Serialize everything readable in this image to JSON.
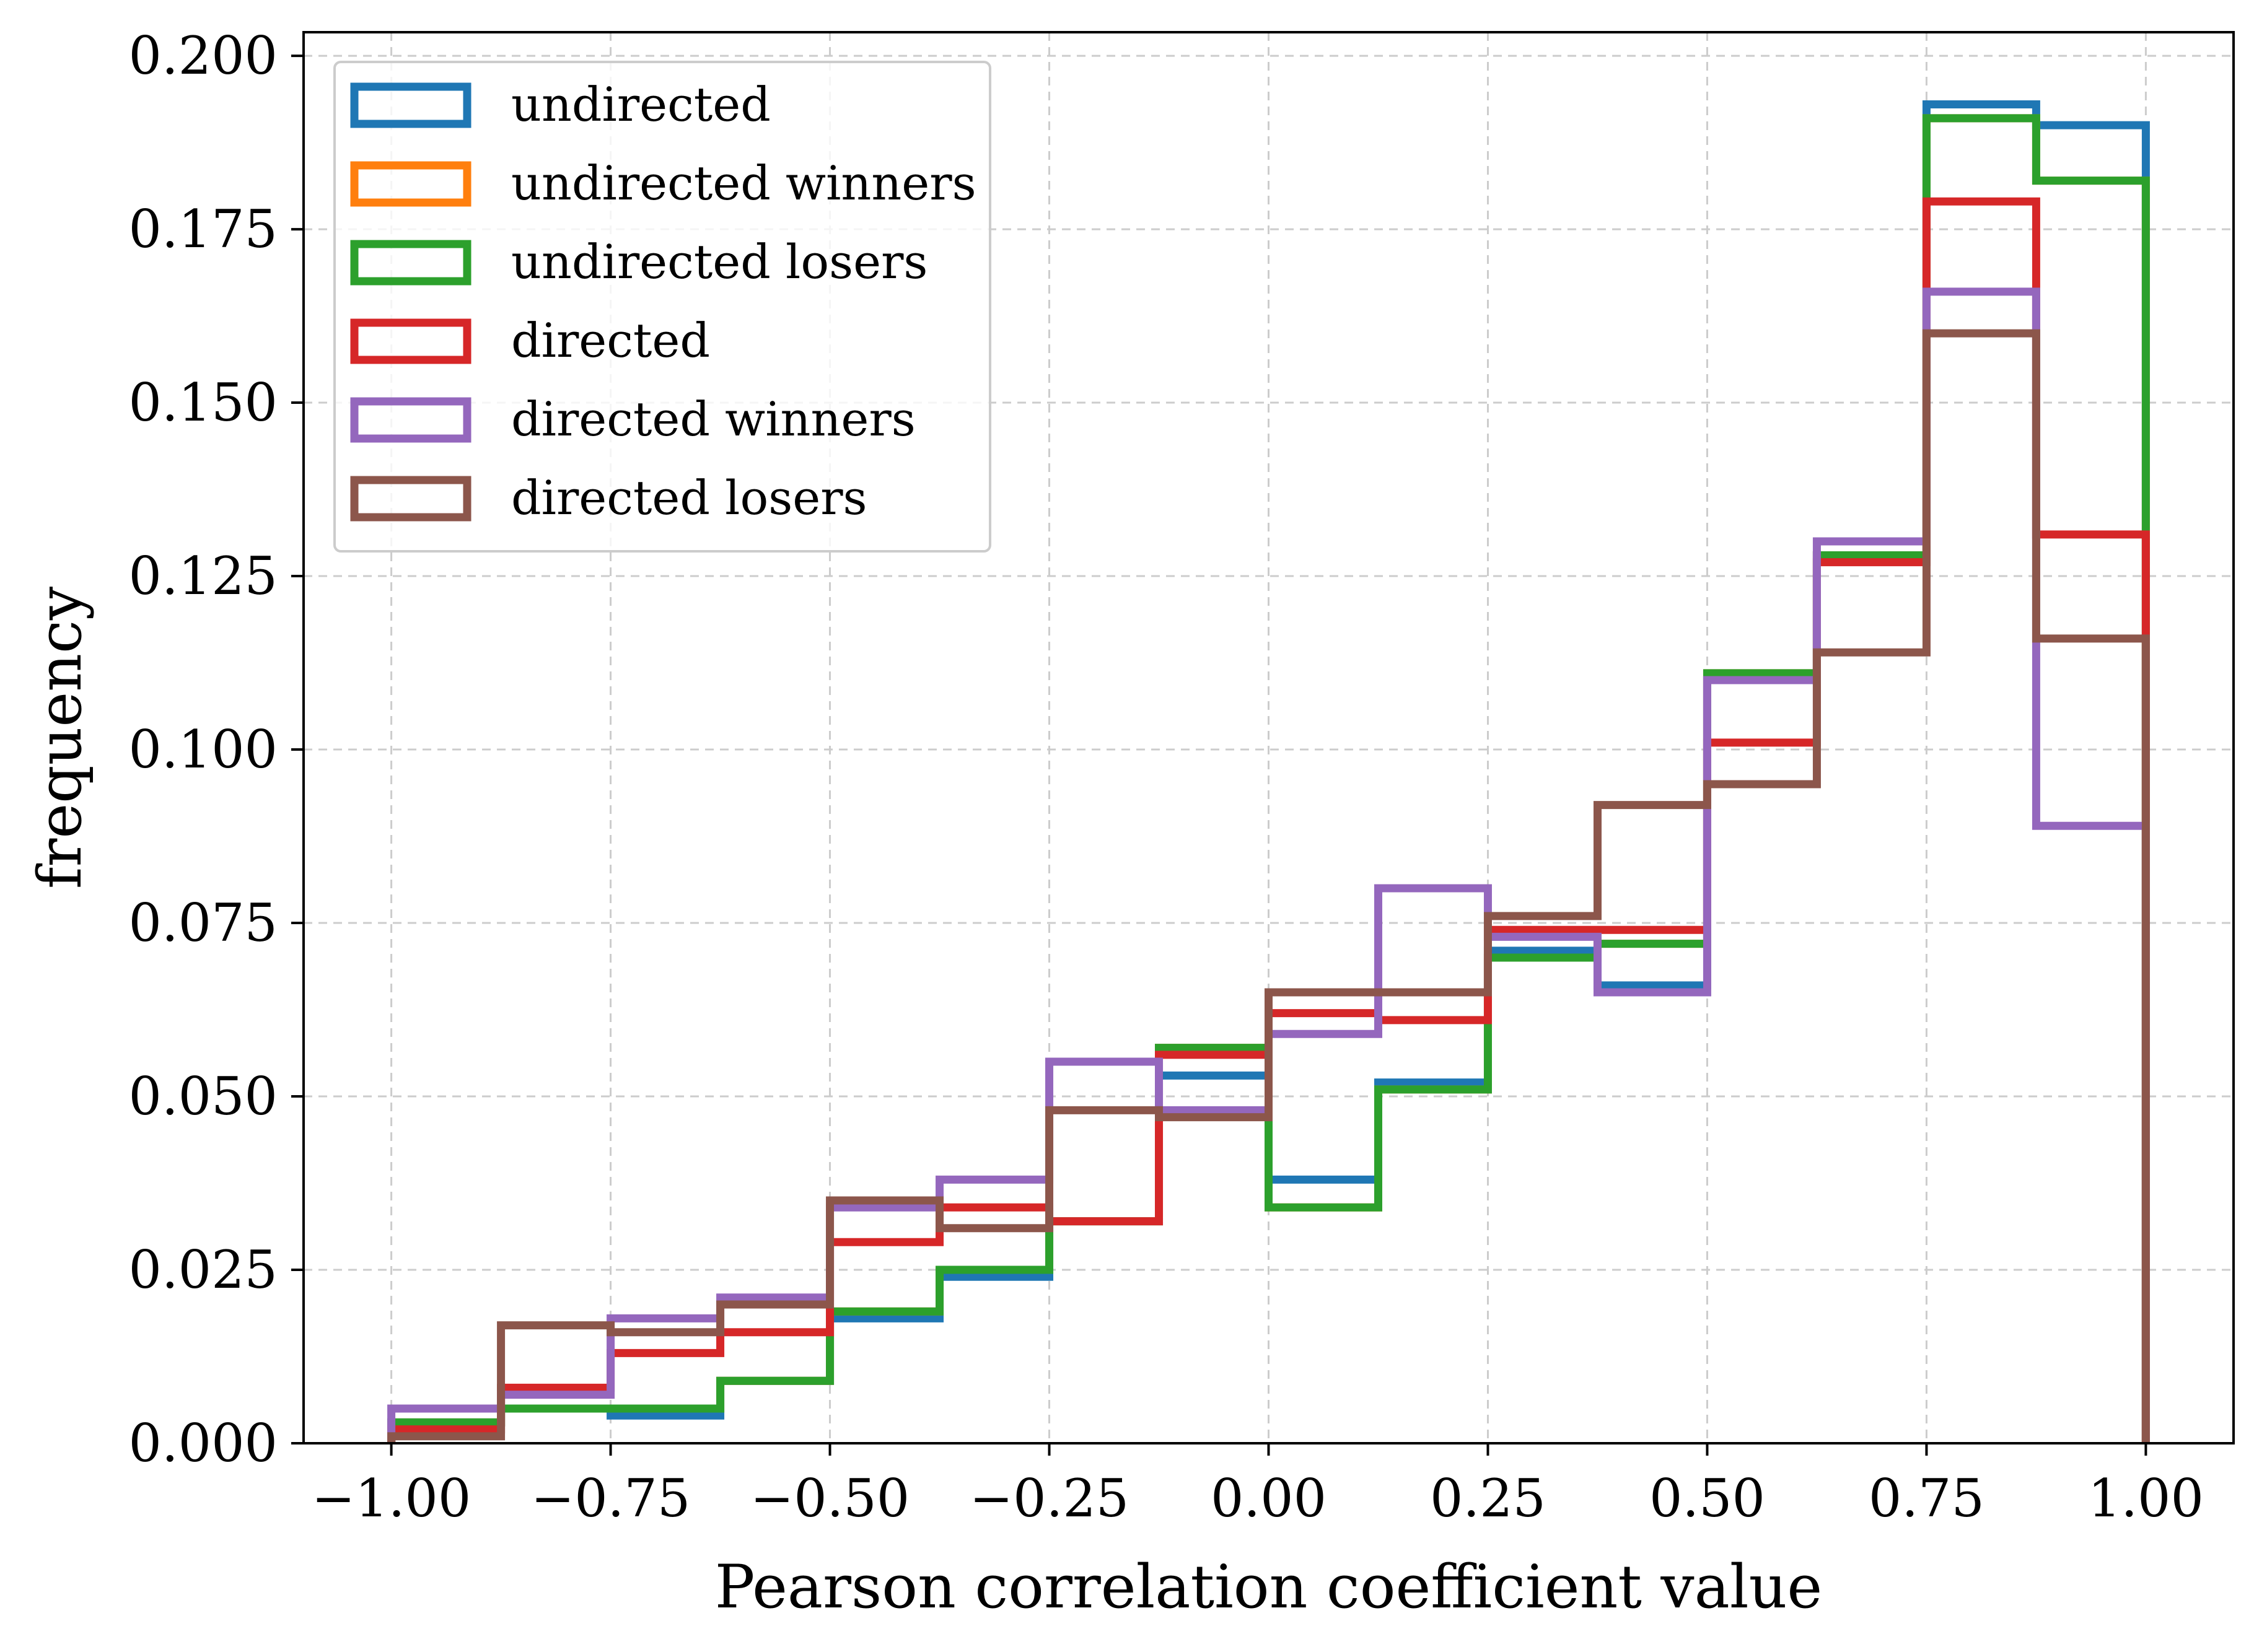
{
  "chart_data": {
    "type": "histogram",
    "title": "",
    "xlabel": "Pearson correlation coefficient value",
    "ylabel": "frequency",
    "xlim": [
      -1.1,
      1.1
    ],
    "ylim": [
      0,
      0.2034
    ],
    "grid": true,
    "legend_position": "upper-left",
    "xticks": [
      -1.0,
      -0.75,
      -0.5,
      -0.25,
      0.0,
      0.25,
      0.5,
      0.75,
      1.0
    ],
    "xtick_labels": [
      "−1.00",
      "−0.75",
      "−0.50",
      "−0.25",
      "0.00",
      "0.25",
      "0.50",
      "0.75",
      "1.00"
    ],
    "yticks": [
      0.0,
      0.025,
      0.05,
      0.075,
      0.1,
      0.125,
      0.15,
      0.175,
      0.2
    ],
    "ytick_labels": [
      "0.000",
      "0.025",
      "0.050",
      "0.075",
      "0.100",
      "0.125",
      "0.150",
      "0.175",
      "0.200"
    ],
    "bin_edges": [
      -1.0,
      -0.875,
      -0.75,
      -0.625,
      -0.5,
      -0.375,
      -0.25,
      -0.125,
      0.0,
      0.125,
      0.25,
      0.375,
      0.5,
      0.625,
      0.75,
      0.875,
      1.0
    ],
    "series": [
      {
        "name": "undirected",
        "color": "#1f77b4",
        "values": [
          0.003,
          0.005,
          0.004,
          0.009,
          0.018,
          0.024,
          0.032,
          0.053,
          0.038,
          0.052,
          0.071,
          0.066,
          0.11,
          0.128,
          0.193,
          0.19
        ]
      },
      {
        "name": "undirected winners",
        "color": "#ff7f0e",
        "values": [
          0.003,
          0.005,
          0.005,
          0.009,
          0.019,
          0.025,
          0.032,
          0.057,
          0.034,
          0.051,
          0.07,
          0.072,
          0.111,
          0.128,
          0.191,
          0.182
        ]
      },
      {
        "name": "undirected losers",
        "color": "#2ca02c",
        "values": [
          0.003,
          0.005,
          0.005,
          0.009,
          0.019,
          0.025,
          0.032,
          0.057,
          0.034,
          0.051,
          0.07,
          0.072,
          0.111,
          0.128,
          0.191,
          0.182
        ]
      },
      {
        "name": "directed",
        "color": "#d62728",
        "values": [
          0.002,
          0.008,
          0.013,
          0.016,
          0.029,
          0.034,
          0.032,
          0.056,
          0.062,
          0.061,
          0.074,
          0.074,
          0.101,
          0.127,
          0.179,
          0.131
        ]
      },
      {
        "name": "directed winners",
        "color": "#9467bd",
        "values": [
          0.005,
          0.007,
          0.018,
          0.021,
          0.034,
          0.038,
          0.055,
          0.048,
          0.059,
          0.08,
          0.073,
          0.065,
          0.11,
          0.13,
          0.166,
          0.089
        ]
      },
      {
        "name": "directed losers",
        "color": "#8c564b",
        "values": [
          0.001,
          0.017,
          0.016,
          0.02,
          0.035,
          0.031,
          0.048,
          0.047,
          0.065,
          0.065,
          0.076,
          0.092,
          0.095,
          0.114,
          0.16,
          0.116
        ]
      }
    ]
  }
}
